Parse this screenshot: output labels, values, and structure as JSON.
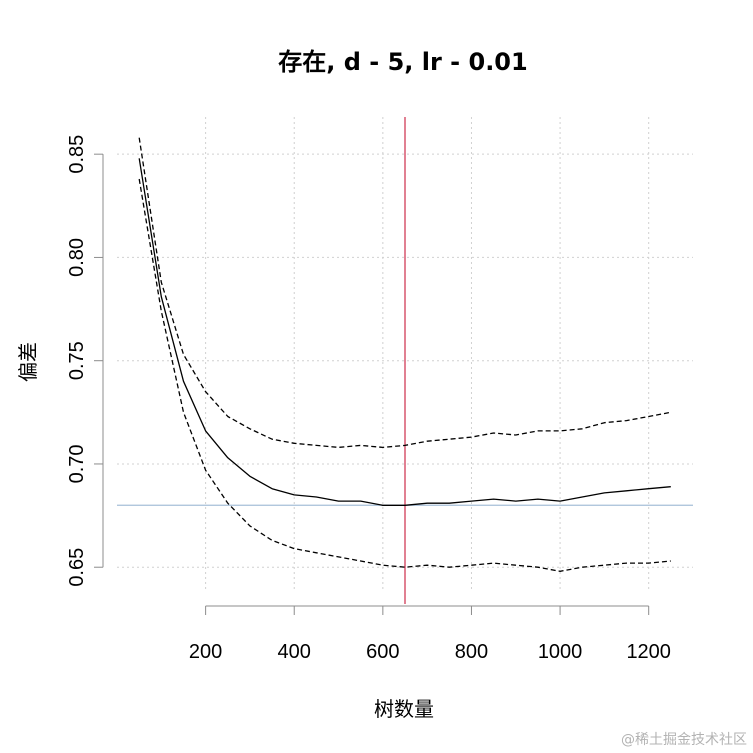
{
  "chart_data": {
    "type": "line",
    "title": "存在, d - 5, lr - 0.01",
    "xlabel": "树数量",
    "ylabel": "偏差",
    "xlim": [
      0,
      1300
    ],
    "ylim": [
      0.638,
      0.868
    ],
    "x_ticks": [
      200,
      400,
      600,
      800,
      1000,
      1200
    ],
    "y_ticks": [
      0.65,
      0.7,
      0.75,
      0.8,
      0.85
    ],
    "x_tick_labels": [
      "200",
      "400",
      "600",
      "800",
      "1000",
      "1200"
    ],
    "y_tick_labels": [
      "0.65",
      "0.70",
      "0.75",
      "0.80",
      "0.85"
    ],
    "grid": true,
    "optimal_trees": 650,
    "min_deviance": 0.68,
    "x": [
      50,
      100,
      150,
      200,
      250,
      300,
      350,
      400,
      450,
      500,
      550,
      600,
      650,
      700,
      750,
      800,
      850,
      900,
      950,
      1000,
      1050,
      1100,
      1150,
      1200,
      1250
    ],
    "series": [
      {
        "style": "solid",
        "values": [
          0.848,
          0.781,
          0.74,
          0.716,
          0.703,
          0.694,
          0.688,
          0.685,
          0.684,
          0.682,
          0.682,
          0.68,
          0.68,
          0.681,
          0.681,
          0.682,
          0.683,
          0.682,
          0.683,
          0.682,
          0.684,
          0.686,
          0.687,
          0.688,
          0.689
        ]
      },
      {
        "style": "dashed",
        "values": [
          0.858,
          0.788,
          0.753,
          0.735,
          0.723,
          0.717,
          0.712,
          0.71,
          0.709,
          0.708,
          0.709,
          0.708,
          0.709,
          0.711,
          0.712,
          0.713,
          0.715,
          0.714,
          0.716,
          0.716,
          0.717,
          0.72,
          0.721,
          0.723,
          0.725
        ]
      },
      {
        "style": "dashed",
        "values": [
          0.838,
          0.774,
          0.725,
          0.697,
          0.681,
          0.67,
          0.663,
          0.659,
          0.657,
          0.655,
          0.653,
          0.651,
          0.65,
          0.651,
          0.65,
          0.651,
          0.652,
          0.651,
          0.65,
          0.648,
          0.65,
          0.651,
          0.652,
          0.652,
          0.653
        ]
      }
    ],
    "colors": {
      "line": "#000000",
      "vline": "#cd2c4a",
      "hline": "#a6bfd8",
      "grid": "#d0d0d0",
      "axis": "#8c8c8c"
    }
  },
  "watermark": "@稀土掘金技术社区"
}
